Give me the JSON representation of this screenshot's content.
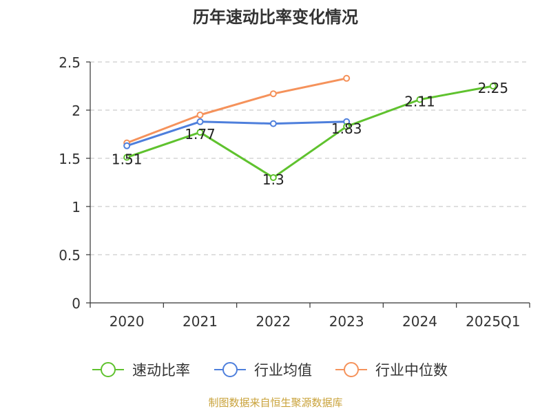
{
  "chart_data": {
    "type": "line",
    "title": "历年速动比率变化情况",
    "categories": [
      "2020",
      "2021",
      "2022",
      "2023",
      "2024",
      "2025Q1"
    ],
    "ylim": [
      0,
      2.5
    ],
    "yticks": [
      "0",
      "0.5",
      "1",
      "1.5",
      "2",
      "2.5"
    ],
    "ytick_values": [
      0,
      0.5,
      1,
      1.5,
      2,
      2.5
    ],
    "grid": true,
    "legend_position": "bottom",
    "series": [
      {
        "name": "速动比率",
        "color": "#5fc22e",
        "values": [
          1.51,
          1.77,
          1.3,
          1.83,
          2.11,
          2.25
        ],
        "labels": [
          "1.51",
          "1.77",
          "1.3",
          "1.83",
          "2.11",
          "2.25"
        ]
      },
      {
        "name": "行业均值",
        "color": "#4e7fdc",
        "values": [
          1.63,
          1.88,
          1.86,
          1.88,
          null,
          null
        ]
      },
      {
        "name": "行业中位数",
        "color": "#f5925b",
        "values": [
          1.66,
          1.95,
          2.17,
          2.33,
          null,
          null
        ]
      }
    ],
    "source": "制图数据来自恒生聚源数据库"
  }
}
